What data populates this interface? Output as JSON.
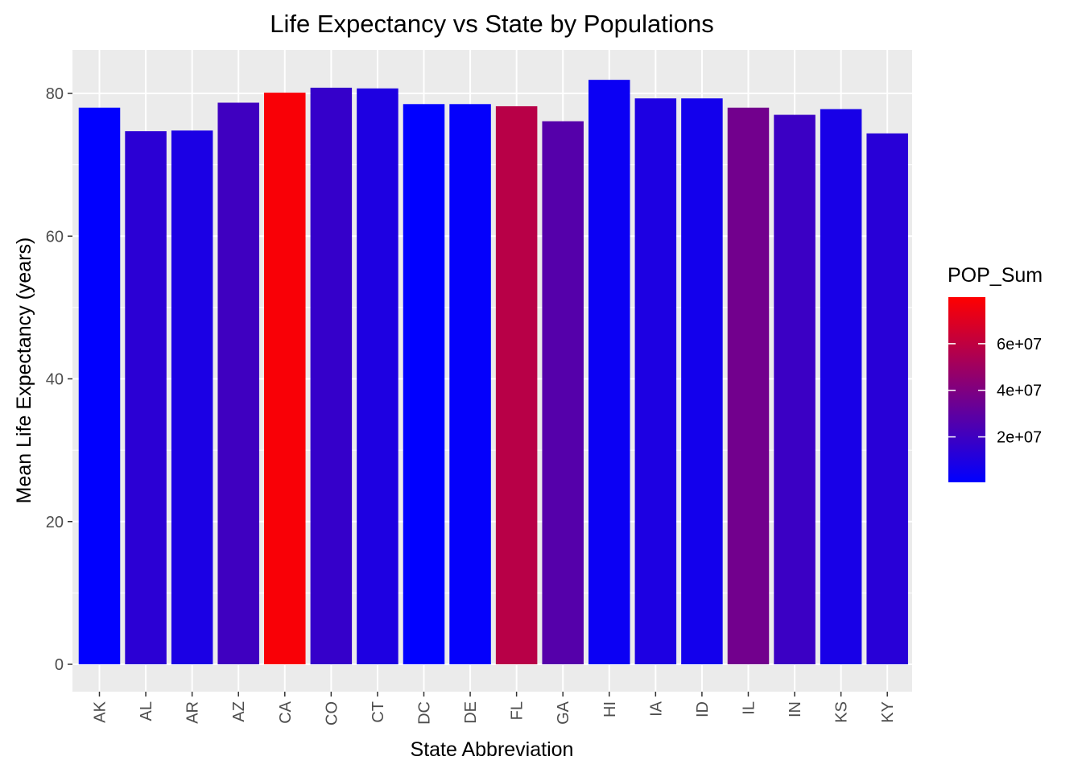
{
  "chart_data": {
    "type": "bar",
    "title": "Life Expectancy vs State by Populations",
    "xlabel": "State Abbreviation",
    "ylabel": "Mean Life Expectancy (years)",
    "ylim": [
      0,
      85
    ],
    "yticks": [
      0,
      20,
      40,
      60,
      80
    ],
    "ytick_labels": [
      "0",
      "20",
      "40",
      "60",
      "80"
    ],
    "grid": true,
    "categories": [
      "AK",
      "AL",
      "AR",
      "AZ",
      "CA",
      "CO",
      "CT",
      "DC",
      "DE",
      "FL",
      "GA",
      "HI",
      "IA",
      "ID",
      "IL",
      "IN",
      "KS",
      "KY"
    ],
    "values": [
      78.0,
      74.7,
      74.8,
      78.7,
      80.1,
      80.8,
      80.7,
      78.5,
      78.5,
      78.2,
      76.1,
      81.9,
      79.3,
      79.3,
      78.0,
      77.0,
      77.8,
      74.4
    ],
    "fill_values": [
      730000,
      14000000,
      9000000,
      20000000,
      78000000,
      17000000,
      10000000,
      250000,
      1700000,
      58000000,
      27000000,
      4000000,
      9500000,
      6500000,
      36000000,
      19000000,
      8000000,
      13000000
    ],
    "legend": {
      "title": "POP_Sum",
      "position": "right",
      "range": [
        500000,
        80000000
      ],
      "ticks": [
        20000000,
        40000000,
        60000000
      ],
      "tick_labels": [
        "2e+07",
        "4e+07",
        "6e+07"
      ],
      "low_color": "#0000ff",
      "high_color": "#ff0000"
    },
    "panel_color": "#ebebeb",
    "grid_color": "#ffffff"
  }
}
